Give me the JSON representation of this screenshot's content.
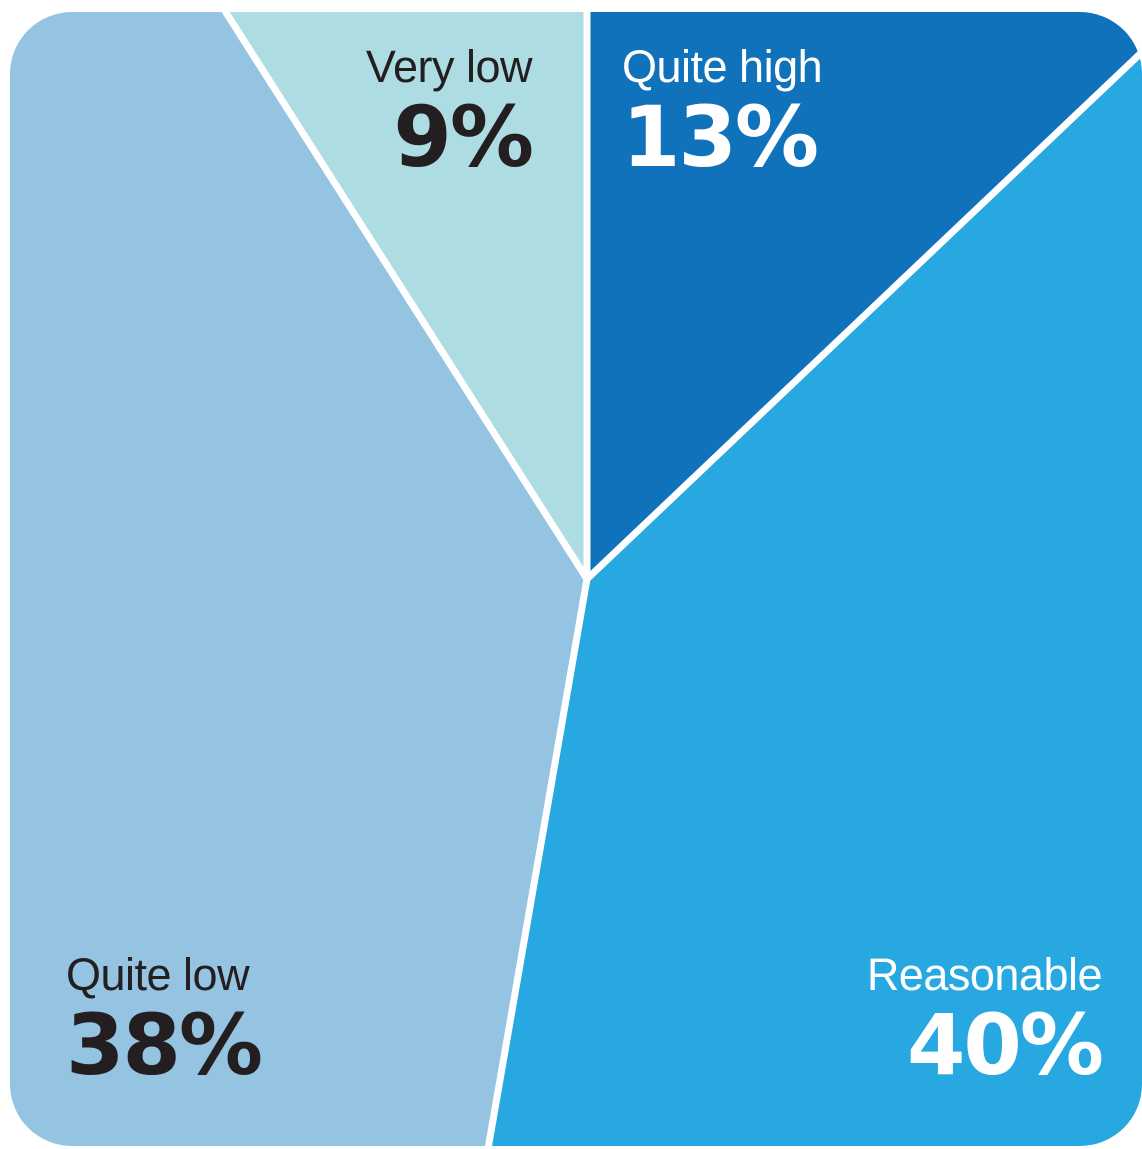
{
  "chart_data": {
    "type": "pie",
    "slices": [
      {
        "label": "Very low",
        "value": 9,
        "value_label": "9%",
        "color": "#aedce3",
        "text_color": "#231f20"
      },
      {
        "label": "Quite high",
        "value": 13,
        "value_label": "13%",
        "color": "#1072ba",
        "text_color": "#ffffff"
      },
      {
        "label": "Reasonable",
        "value": 40,
        "value_label": "40%",
        "color": "#27a8e0",
        "text_color": "#ffffff"
      },
      {
        "label": "Quite low",
        "value": 38,
        "value_label": "38%",
        "color": "#95c3e2",
        "text_color": "#231f20"
      }
    ],
    "separator_color": "#ffffff"
  }
}
